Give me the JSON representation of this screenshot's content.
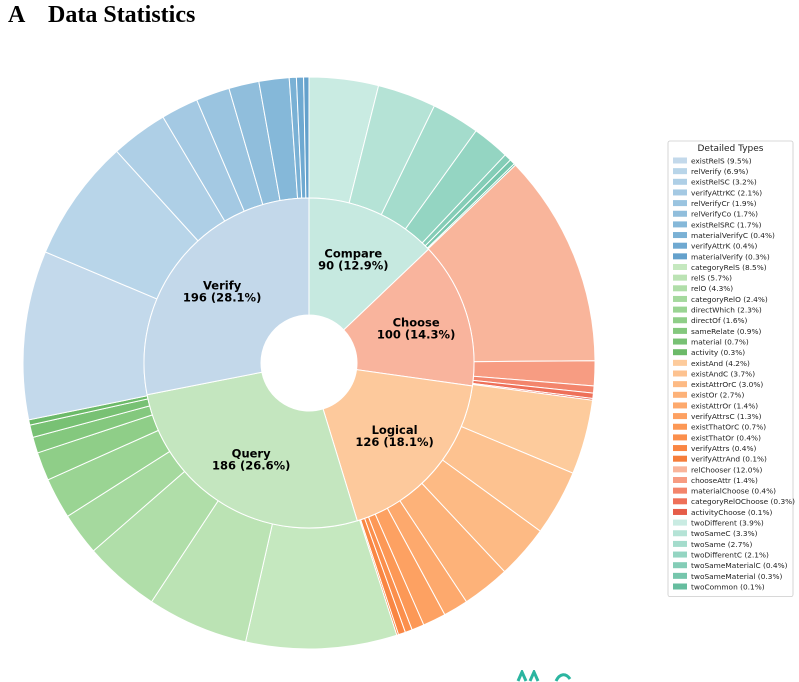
{
  "header": {
    "panel_letter": "A",
    "title": "Data Statistics"
  },
  "chart_data": {
    "type": "pie",
    "subtype": "nested-donut",
    "title": "",
    "legend": {
      "title": "Detailed Types",
      "placement": "right"
    },
    "inner": [
      {
        "name": "Compare",
        "count": 90,
        "pct": "12.9%",
        "color": "#c6e9e0"
      },
      {
        "name": "Choose",
        "count": 100,
        "pct": "14.3%",
        "color": "#f9b49d"
      },
      {
        "name": "Logical",
        "count": 126,
        "pct": "18.1%",
        "color": "#fdc99c"
      },
      {
        "name": "Query",
        "count": 186,
        "pct": "26.6%",
        "color": "#c4e6bf"
      },
      {
        "name": "Verify",
        "count": 196,
        "pct": "28.1%",
        "color": "#c3d8ea"
      }
    ],
    "outer": [
      {
        "label": "twoDifferent (3.9%)",
        "value": 3.9,
        "group": "Compare",
        "color": "#c9ebe2"
      },
      {
        "label": "twoSameC (3.3%)",
        "value": 3.3,
        "group": "Compare",
        "color": "#b5e3d6"
      },
      {
        "label": "twoSame (2.7%)",
        "value": 2.7,
        "group": "Compare",
        "color": "#a4dccc"
      },
      {
        "label": "twoDifferentC (2.1%)",
        "value": 2.1,
        "group": "Compare",
        "color": "#94d5c2"
      },
      {
        "label": "twoSameMaterialC (0.4%)",
        "value": 0.4,
        "group": "Compare",
        "color": "#84cdb7"
      },
      {
        "label": "twoSameMaterial (0.3%)",
        "value": 0.3,
        "group": "Compare",
        "color": "#76c6ac"
      },
      {
        "label": "twoCommon (0.1%)",
        "value": 0.1,
        "group": "Compare",
        "color": "#66bd9f"
      },
      {
        "label": "relChooser (12.0%)",
        "value": 12.0,
        "group": "Choose",
        "color": "#f9b59b"
      },
      {
        "label": "chooseAttr (1.4%)",
        "value": 1.4,
        "group": "Choose",
        "color": "#f79c82"
      },
      {
        "label": "materialChoose (0.4%)",
        "value": 0.4,
        "group": "Choose",
        "color": "#f3856c"
      },
      {
        "label": "categoryRelOChoose (0.3%)",
        "value": 0.3,
        "group": "Choose",
        "color": "#ee7059"
      },
      {
        "label": "activityChoose (0.1%)",
        "value": 0.1,
        "group": "Choose",
        "color": "#e65d49"
      },
      {
        "label": "existAnd (4.2%)",
        "value": 4.2,
        "group": "Logical",
        "color": "#fdcb9c"
      },
      {
        "label": "existAndC (3.7%)",
        "value": 3.7,
        "group": "Logical",
        "color": "#fdc290"
      },
      {
        "label": "existAttrOrC (3.0%)",
        "value": 3.0,
        "group": "Logical",
        "color": "#fdba84"
      },
      {
        "label": "existOr (2.7%)",
        "value": 2.7,
        "group": "Logical",
        "color": "#fdb279"
      },
      {
        "label": "existAttrOr (1.4%)",
        "value": 1.4,
        "group": "Logical",
        "color": "#fda96d"
      },
      {
        "label": "verifyAttrsC (1.3%)",
        "value": 1.3,
        "group": "Logical",
        "color": "#fda162"
      },
      {
        "label": "existThatOrC (0.7%)",
        "value": 0.7,
        "group": "Logical",
        "color": "#fc9856"
      },
      {
        "label": "existThatOr (0.4%)",
        "value": 0.4,
        "group": "Logical",
        "color": "#fb8f4c"
      },
      {
        "label": "verifyAttrs (0.4%)",
        "value": 0.4,
        "group": "Logical",
        "color": "#f98643"
      },
      {
        "label": "verifyAttrAnd (0.1%)",
        "value": 0.1,
        "group": "Logical",
        "color": "#f57d3a"
      },
      {
        "label": "categoryRelS (8.5%)",
        "value": 8.5,
        "group": "Query",
        "color": "#c5e8bf"
      },
      {
        "label": "relS (5.7%)",
        "value": 5.7,
        "group": "Query",
        "color": "#bbe3b4"
      },
      {
        "label": "relO (4.3%)",
        "value": 4.3,
        "group": "Query",
        "color": "#b0dea9"
      },
      {
        "label": "categoryRelO (2.4%)",
        "value": 2.4,
        "group": "Query",
        "color": "#a5d99e"
      },
      {
        "label": "directWhich (2.3%)",
        "value": 2.3,
        "group": "Query",
        "color": "#9ad493"
      },
      {
        "label": "directOf (1.6%)",
        "value": 1.6,
        "group": "Query",
        "color": "#8fce88"
      },
      {
        "label": "sameRelate (0.9%)",
        "value": 0.9,
        "group": "Query",
        "color": "#84c87e"
      },
      {
        "label": "material (0.7%)",
        "value": 0.7,
        "group": "Query",
        "color": "#78c174"
      },
      {
        "label": "activity (0.3%)",
        "value": 0.3,
        "group": "Query",
        "color": "#6cba69"
      },
      {
        "label": "existRelS (9.5%)",
        "value": 9.5,
        "group": "Verify",
        "color": "#c3d9eb"
      },
      {
        "label": "relVerify (6.9%)",
        "value": 6.9,
        "group": "Verify",
        "color": "#b8d5e9"
      },
      {
        "label": "existRelSC (3.2%)",
        "value": 3.2,
        "group": "Verify",
        "color": "#aecfe6"
      },
      {
        "label": "verifyAttrKC (2.1%)",
        "value": 2.1,
        "group": "Verify",
        "color": "#a4c9e3"
      },
      {
        "label": "relVerifyCr (1.9%)",
        "value": 1.9,
        "group": "Verify",
        "color": "#9ac4e0"
      },
      {
        "label": "relVerifyCo (1.7%)",
        "value": 1.7,
        "group": "Verify",
        "color": "#90bedc"
      },
      {
        "label": "existRelSRC (1.7%)",
        "value": 1.7,
        "group": "Verify",
        "color": "#85b8d9"
      },
      {
        "label": "materialVerifyC (0.4%)",
        "value": 0.4,
        "group": "Verify",
        "color": "#7ab1d5"
      },
      {
        "label": "verifyAttrK (0.4%)",
        "value": 0.4,
        "group": "Verify",
        "color": "#6fa9d1"
      },
      {
        "label": "materialVerify (0.3%)",
        "value": 0.3,
        "group": "Verify",
        "color": "#64a1cc"
      }
    ],
    "legend_order": [
      "existRelS (9.5%)",
      "relVerify (6.9%)",
      "existRelSC (3.2%)",
      "verifyAttrKC (2.1%)",
      "relVerifyCr (1.9%)",
      "relVerifyCo (1.7%)",
      "existRelSRC (1.7%)",
      "materialVerifyC (0.4%)",
      "verifyAttrK (0.4%)",
      "materialVerify (0.3%)",
      "categoryRelS (8.5%)",
      "relS (5.7%)",
      "relO (4.3%)",
      "categoryRelO (2.4%)",
      "directWhich (2.3%)",
      "directOf (1.6%)",
      "sameRelate (0.9%)",
      "material (0.7%)",
      "activity (0.3%)",
      "existAnd (4.2%)",
      "existAndC (3.7%)",
      "existAttrOrC (3.0%)",
      "existOr (2.7%)",
      "existAttrOr (1.4%)",
      "verifyAttrsC (1.3%)",
      "existThatOrC (0.7%)",
      "existThatOr (0.4%)",
      "verifyAttrs (0.4%)",
      "verifyAttrAnd (0.1%)",
      "relChooser (12.0%)",
      "chooseAttr (1.4%)",
      "materialChoose (0.4%)",
      "categoryRelOChoose (0.3%)",
      "activityChoose (0.1%)",
      "twoDifferent (3.9%)",
      "twoSameC (3.3%)",
      "twoSame (2.7%)",
      "twoDifferentC (2.1%)",
      "twoSameMaterialC (0.4%)",
      "twoSameMaterial (0.3%)",
      "twoCommon (0.1%)"
    ]
  },
  "colors": {
    "bottom_fragment": "#2bb5a0"
  }
}
